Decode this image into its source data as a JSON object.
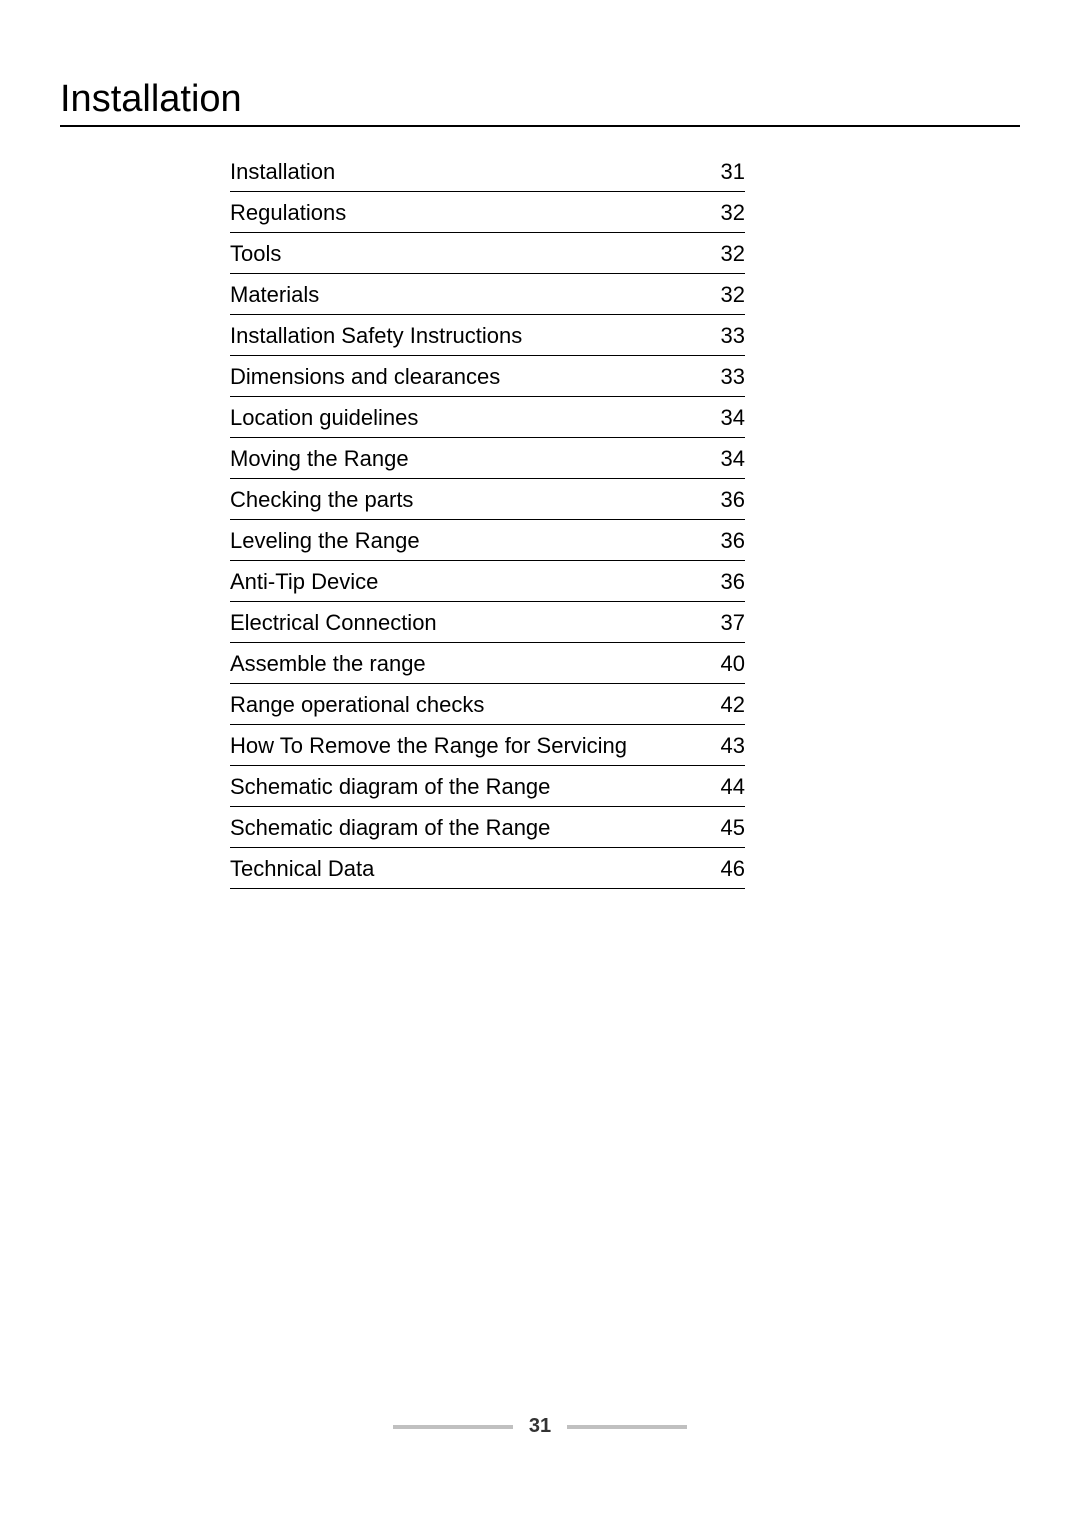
{
  "title": "Installation",
  "toc": [
    {
      "label": "Installation",
      "page": "31"
    },
    {
      "label": "Regulations",
      "page": "32"
    },
    {
      "label": "Tools",
      "page": "32"
    },
    {
      "label": "Materials",
      "page": "32"
    },
    {
      "label": "Installation Safety Instructions",
      "page": "33"
    },
    {
      "label": "Dimensions and clearances",
      "page": "33"
    },
    {
      "label": "Location guidelines",
      "page": "34"
    },
    {
      "label": "Moving the Range",
      "page": "34"
    },
    {
      "label": "Checking the parts",
      "page": "36"
    },
    {
      "label": "Leveling the Range",
      "page": "36"
    },
    {
      "label": "Anti-Tip Device",
      "page": "36"
    },
    {
      "label": "Electrical Connection",
      "page": "37"
    },
    {
      "label": "Assemble the range",
      "page": "40"
    },
    {
      "label": "Range operational checks",
      "page": "42"
    },
    {
      "label": "How To Remove the Range for Servicing",
      "page": "43"
    },
    {
      "label": "Schematic diagram of the Range",
      "page": "44"
    },
    {
      "label": "Schematic diagram of the Range",
      "page": "45"
    },
    {
      "label": "Technical Data",
      "page": "46"
    }
  ],
  "page_number": "31",
  "colors": {
    "text": "#000000",
    "background": "#ffffff",
    "bar_line": "#c0c0c0",
    "page_num_text": "#333333"
  },
  "typography": {
    "title_fontsize": 38,
    "toc_fontsize": 22,
    "page_num_fontsize": 20
  }
}
